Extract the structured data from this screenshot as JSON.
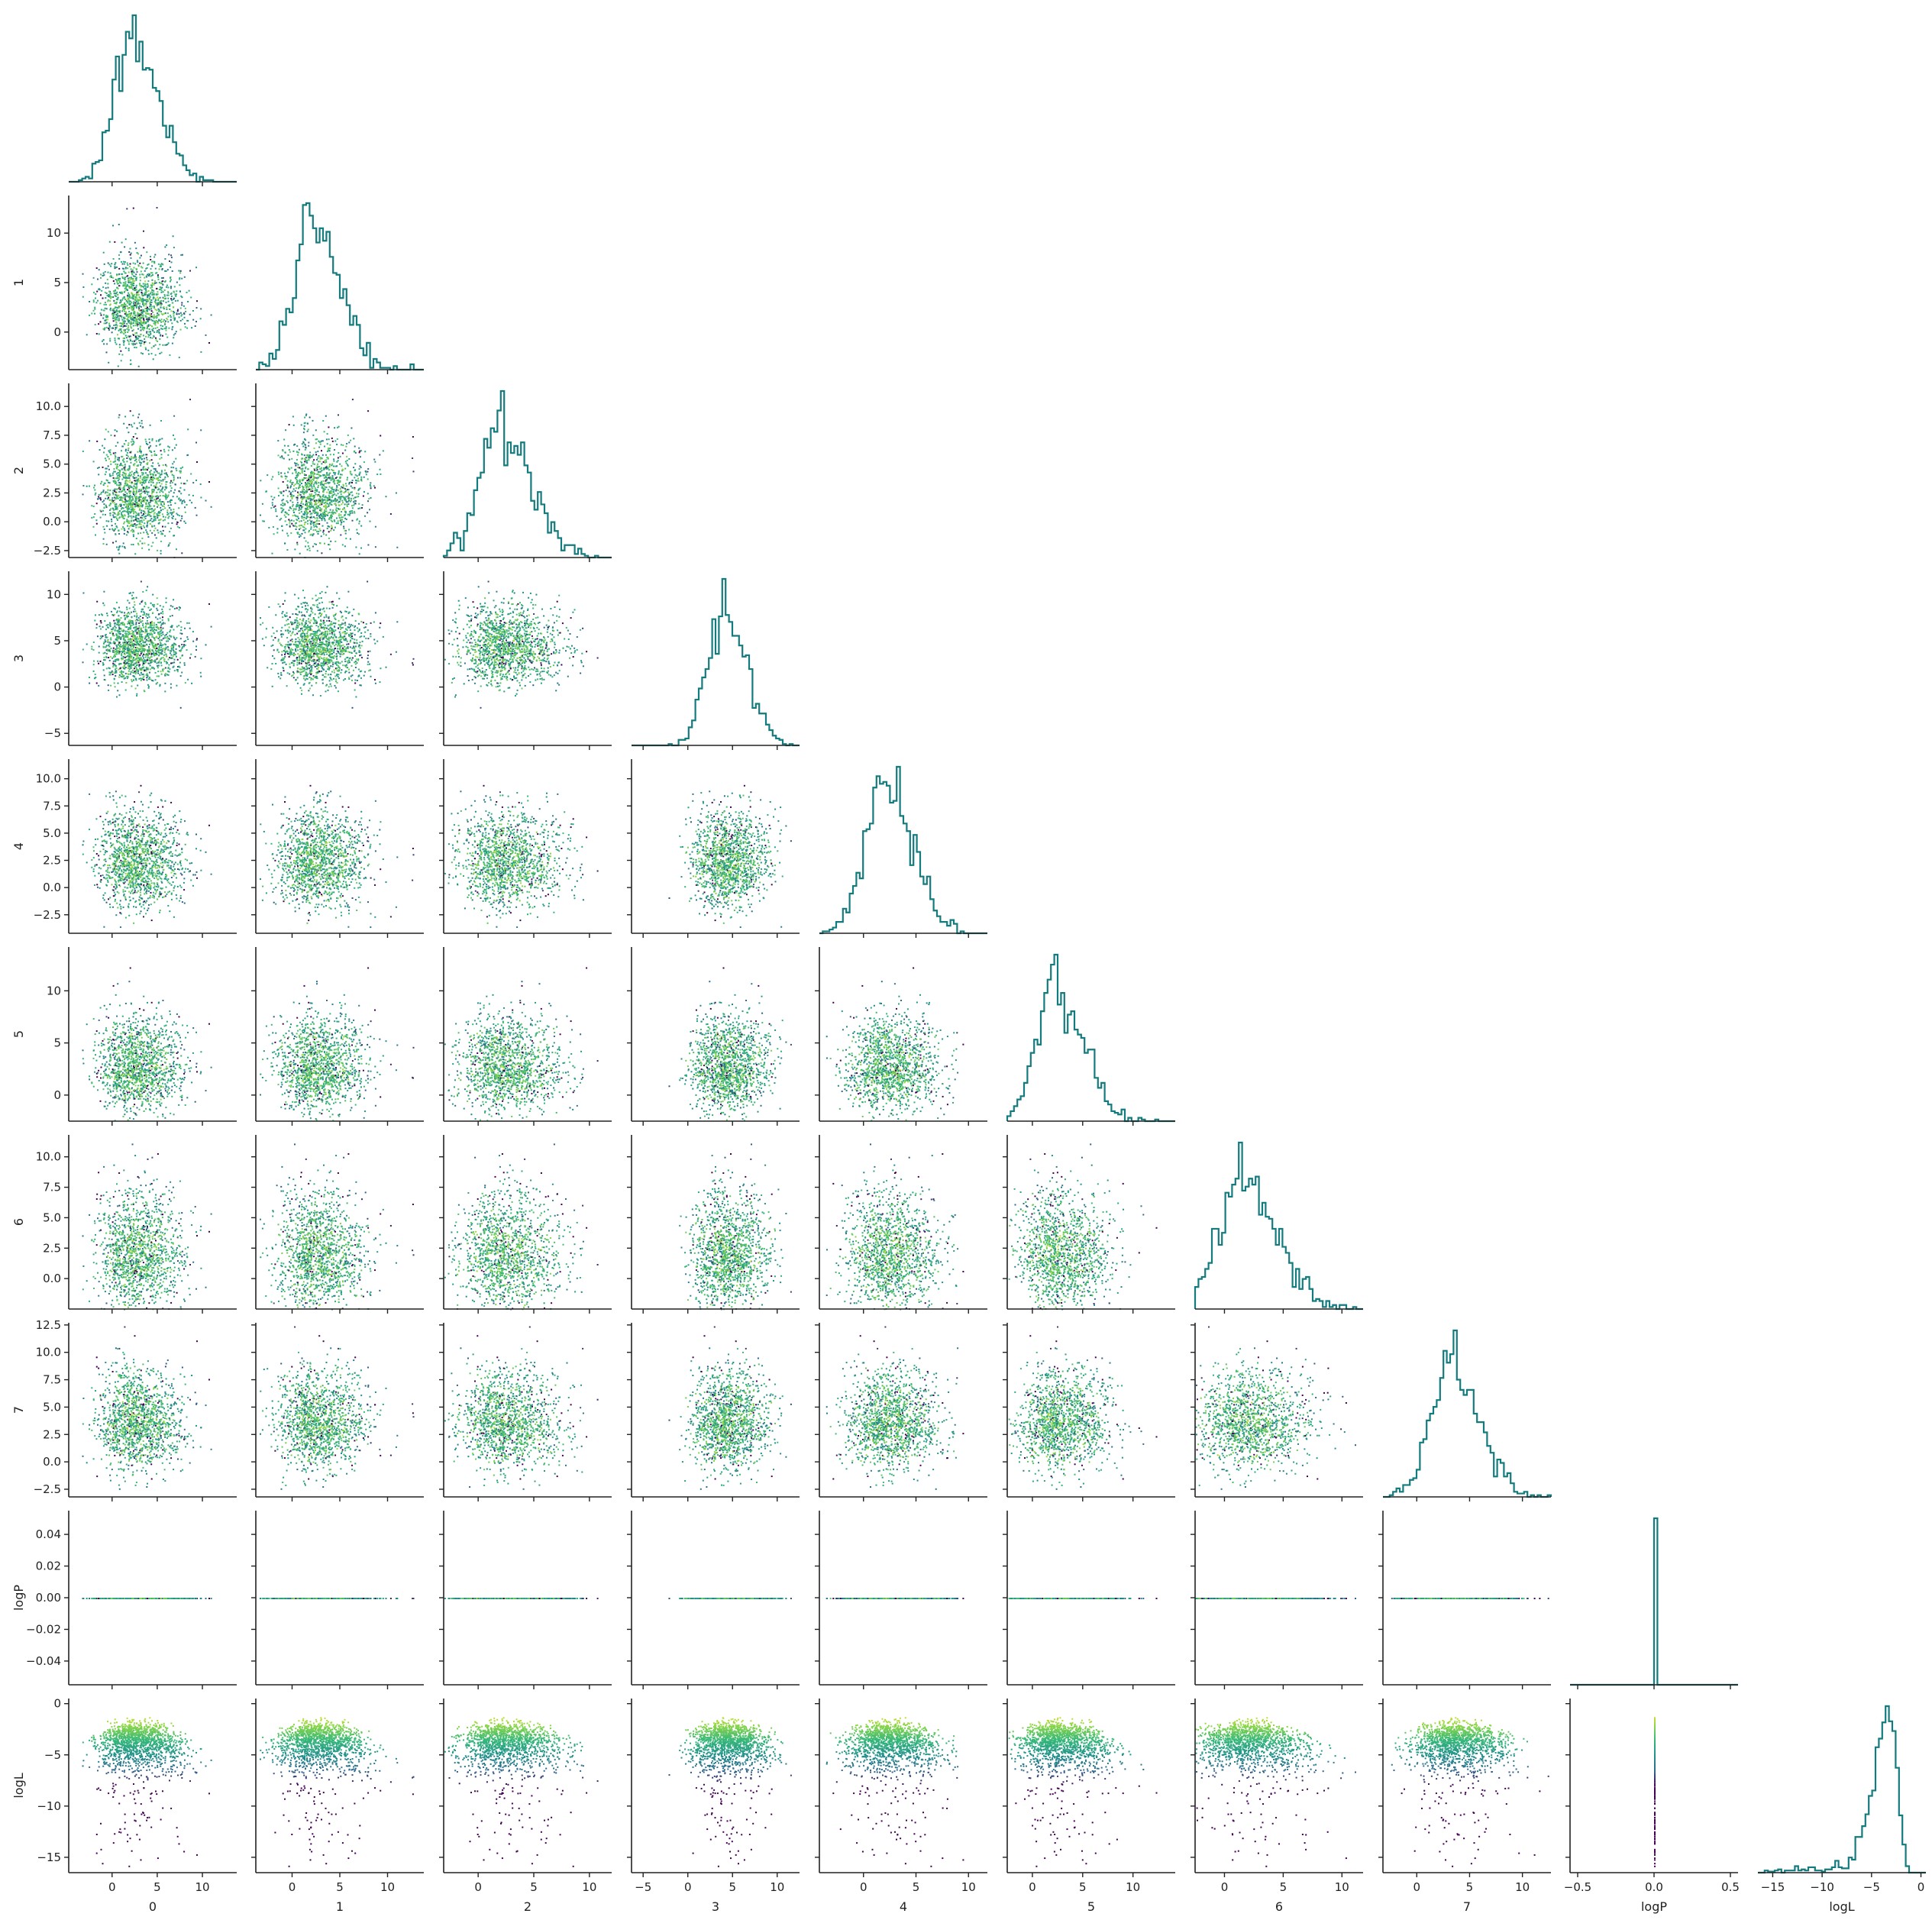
{
  "chart_data": {
    "type": "scatter",
    "title": "",
    "variables": [
      "0",
      "1",
      "2",
      "3",
      "4",
      "5",
      "6",
      "7",
      "logP",
      "logL"
    ],
    "layout": "corner (lower-triangle pair plot) with step histograms on the diagonal",
    "diagonal_type": "step histogram",
    "hist_color": "#137b7e",
    "scatter_colormap": "viridis (colored by logL, yellow = high)",
    "colormap_stops": [
      "#440154",
      "#31688e",
      "#21918c",
      "#35b779",
      "#90d743",
      "#fde725"
    ],
    "marginals": [
      {
        "name": "0",
        "mode": 2.7,
        "spread": 2.0,
        "range": [
          -4.8,
          13.8
        ],
        "bins": 50
      },
      {
        "name": "1",
        "mode": 2.6,
        "spread": 2.1,
        "range": [
          -3.8,
          13.8
        ],
        "bins": 50
      },
      {
        "name": "2",
        "mode": 2.4,
        "spread": 2.0,
        "range": [
          -3.1,
          12.0
        ],
        "bins": 50
      },
      {
        "name": "3",
        "mode": 4.3,
        "spread": 1.9,
        "range": [
          -6.3,
          12.5
        ],
        "bins": 50
      },
      {
        "name": "4",
        "mode": 2.5,
        "spread": 2.0,
        "range": [
          -4.2,
          11.8
        ],
        "bins": 50
      },
      {
        "name": "5",
        "mode": 2.7,
        "spread": 2.0,
        "range": [
          -2.5,
          14.2
        ],
        "bins": 50
      },
      {
        "name": "6",
        "mode": 2.0,
        "spread": 2.2,
        "range": [
          -2.5,
          11.8
        ],
        "bins": 50
      },
      {
        "name": "7",
        "mode": 3.6,
        "spread": 2.0,
        "range": [
          -3.2,
          12.7
        ],
        "bins": 50
      },
      {
        "name": "logP",
        "mode": 0.0,
        "spread": 0.0,
        "range": [
          -0.55,
          0.55
        ],
        "bins": 50
      },
      {
        "name": "logL",
        "mode": -2.3,
        "spread": 1.5,
        "range": [
          -16.5,
          0.5
        ],
        "bins": 50
      }
    ],
    "axes": {
      "0": {
        "ticks": [
          0,
          5,
          10
        ],
        "tick_labels": [
          "0",
          "5",
          "10"
        ]
      },
      "1": {
        "ticks": [
          0,
          5,
          10
        ],
        "tick_labels": [
          "0",
          "5",
          "10"
        ]
      },
      "2": {
        "ticks": [
          -2.5,
          0.0,
          2.5,
          5.0,
          7.5,
          10.0
        ],
        "tick_labels": [
          "−2.5",
          "0.0",
          "2.5",
          "5.0",
          "7.5",
          "10.0"
        ],
        "x_ticks": [
          0,
          5,
          10
        ],
        "x_tick_labels": [
          "0",
          "5",
          "10"
        ]
      },
      "3": {
        "ticks": [
          -5,
          0,
          5,
          10
        ],
        "tick_labels": [
          "−5",
          "0",
          "5",
          "10"
        ]
      },
      "4": {
        "ticks": [
          -2.5,
          0.0,
          2.5,
          5.0,
          7.5,
          10.0
        ],
        "tick_labels": [
          "−2.5",
          "0.0",
          "2.5",
          "5.0",
          "7.5",
          "10.0"
        ],
        "x_ticks": [
          0,
          5,
          10
        ],
        "x_tick_labels": [
          "0",
          "5",
          "10"
        ]
      },
      "5": {
        "ticks": [
          0,
          5,
          10
        ],
        "tick_labels": [
          "0",
          "5",
          "10"
        ]
      },
      "6": {
        "ticks": [
          0.0,
          2.5,
          5.0,
          7.5,
          10.0
        ],
        "tick_labels": [
          "0.0",
          "2.5",
          "5.0",
          "7.5",
          "10.0"
        ],
        "x_ticks": [
          0,
          5,
          10
        ],
        "x_tick_labels": [
          "0",
          "5",
          "10"
        ]
      },
      "7": {
        "ticks": [
          -2.5,
          0.0,
          2.5,
          5.0,
          7.5,
          10.0,
          12.5
        ],
        "tick_labels": [
          "−2.5",
          "0.0",
          "2.5",
          "5.0",
          "7.5",
          "10.0",
          "12.5"
        ],
        "x_ticks": [
          0,
          5,
          10
        ],
        "x_tick_labels": [
          "0",
          "5",
          "10"
        ]
      },
      "logP": {
        "ticks": [
          -0.04,
          -0.02,
          0.0,
          0.02,
          0.04
        ],
        "tick_labels": [
          "−0.04",
          "−0.02",
          "0.00",
          "0.02",
          "0.04"
        ],
        "ylim": [
          -0.055,
          0.055
        ],
        "x_ticks": [
          -0.5,
          0.0,
          0.5
        ],
        "x_tick_labels": [
          "−0.5",
          "0.0",
          "0.5"
        ]
      },
      "logL": {
        "ticks": [
          -15,
          -10,
          -5,
          0
        ],
        "tick_labels": [
          "−15",
          "−10",
          "−5",
          "0"
        ],
        "x_ticks": [
          -15,
          -10,
          -5,
          0
        ],
        "x_tick_labels": [
          "−15",
          "−10",
          "−5",
          "0"
        ]
      }
    },
    "y_axis_labels": [
      "",
      "1",
      "2",
      "3",
      "4",
      "5",
      "6",
      "7",
      "logP",
      "logL"
    ],
    "x_axis_labels": [
      "0",
      "1",
      "2",
      "3",
      "4",
      "5",
      "6",
      "7",
      "logP",
      "logL"
    ],
    "scatter_points_per_panel": 1400,
    "logL_vs_param_shape": "dome: logL ≈ -0.9 − 0.08·(v − mode)² − scatter, max near 0",
    "grid": false,
    "legend": "none"
  }
}
